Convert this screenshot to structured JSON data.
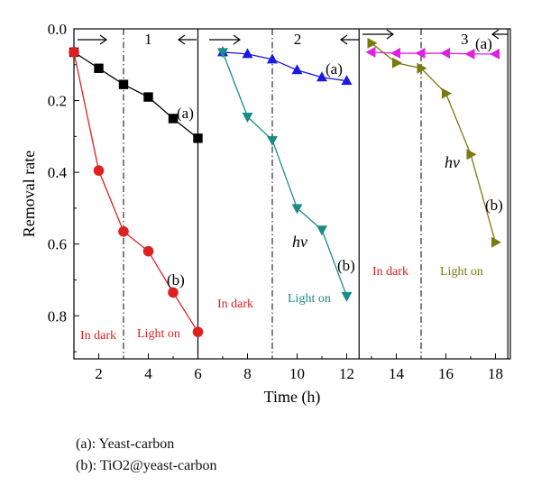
{
  "chart_data": {
    "type": "line",
    "xlabel": "Time (h)",
    "ylabel": "Removal rate",
    "x_ticks": [
      2,
      4,
      6,
      8,
      10,
      12,
      14,
      16,
      18
    ],
    "y_ticks": [
      "0.0",
      "0.2",
      "0.4",
      "0.6",
      "0.8"
    ],
    "xlim": [
      1,
      18.6
    ],
    "ylim": [
      0.0,
      0.92
    ],
    "y_inverted": true,
    "panels": [
      {
        "number": "1",
        "range": [
          1,
          6
        ],
        "dark_light_boundary": 3,
        "dark_label": "In dark",
        "light_label": "Light on",
        "series": [
          {
            "id": "a",
            "label": "(a)",
            "marker": "square",
            "color": "#000000",
            "x": [
              1,
              2,
              3,
              4,
              5,
              6
            ],
            "y": [
              0.065,
              0.11,
              0.155,
              0.19,
              0.25,
              0.305
            ]
          },
          {
            "id": "b",
            "label": "(b)",
            "marker": "circle",
            "color": "#e02020",
            "x": [
              1,
              2,
              3,
              4,
              5,
              6
            ],
            "y": [
              0.065,
              0.395,
              0.565,
              0.62,
              0.735,
              0.845
            ]
          }
        ]
      },
      {
        "number": "2",
        "range": [
          7,
          12
        ],
        "dark_light_boundary": 9,
        "dark_label": "In dark",
        "light_label": "Light on",
        "hv_label": "hν",
        "series": [
          {
            "id": "a",
            "label": "(a)",
            "marker": "triangle-up",
            "color": "#1a1ae0",
            "x": [
              7,
              8,
              9,
              10,
              11,
              12
            ],
            "y": [
              0.065,
              0.07,
              0.085,
              0.115,
              0.135,
              0.145
            ]
          },
          {
            "id": "b",
            "label": "(b)",
            "marker": "triangle-down",
            "color": "#1a8a8a",
            "x": [
              7,
              8,
              9,
              10,
              11,
              12
            ],
            "y": [
              0.065,
              0.245,
              0.31,
              0.5,
              0.56,
              0.745
            ]
          }
        ]
      },
      {
        "number": "3",
        "range": [
          13,
          18
        ],
        "dark_light_boundary": 15,
        "dark_label": "In dark",
        "light_label": "Light on",
        "hv_label": "hν",
        "series": [
          {
            "id": "a",
            "label": "(a)",
            "marker": "triangle-left",
            "color": "#e020e0",
            "x": [
              13,
              14,
              15,
              16,
              17,
              18
            ],
            "y": [
              0.065,
              0.068,
              0.068,
              0.068,
              0.07,
              0.07
            ]
          },
          {
            "id": "b",
            "label": "(b)",
            "marker": "triangle-right",
            "color": "#7a7a10",
            "x": [
              13,
              14,
              15,
              16,
              17,
              18
            ],
            "y": [
              0.04,
              0.095,
              0.11,
              0.18,
              0.35,
              0.595
            ]
          }
        ]
      }
    ],
    "panel_separators_x": [
      6,
      12.5,
      18.5
    ],
    "legend_notes": [
      "(a): Yeast-carbon",
      "(b): TiO2@yeast-carbon"
    ]
  }
}
